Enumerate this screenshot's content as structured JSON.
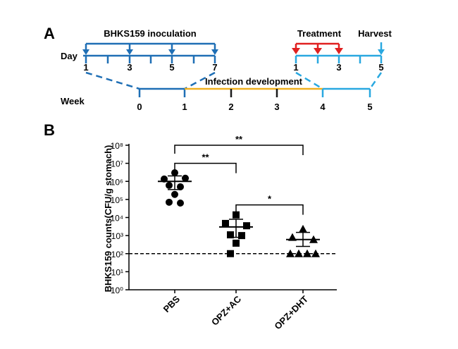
{
  "panel_a": {
    "label": "A",
    "inoculation": "BHKS159 inoculation",
    "day_label": "Day",
    "day_ticks": [
      "1",
      "3",
      "5",
      "7"
    ],
    "treatment": "Treatment",
    "harvest": "Harvest",
    "treatment_ticks": [
      "1",
      "3",
      "5"
    ],
    "week_label": "Week",
    "week_ticks": [
      "0",
      "1",
      "2",
      "3",
      "4",
      "5"
    ],
    "infection": "Infection development"
  },
  "chart_data": {
    "type": "scatter",
    "panel_label": "B",
    "y_label": "BHKS159 counts(CFU/g stomach)",
    "categories": [
      "PBS",
      "OPZ+AC",
      "OPZ+DHT"
    ],
    "log_y": true,
    "ylim": [
      1,
      100000000
    ],
    "yticks": [
      {
        "value": 1,
        "label": "10⁰"
      },
      {
        "value": 10,
        "label": "10¹"
      },
      {
        "value": 100,
        "label": "10²"
      },
      {
        "value": 1000,
        "label": "10³"
      },
      {
        "value": 10000,
        "label": "10⁴"
      },
      {
        "value": 100000,
        "label": "10⁵"
      },
      {
        "value": 1000000,
        "label": "10⁶"
      },
      {
        "value": 10000000,
        "label": "10⁷"
      },
      {
        "value": 100000000,
        "label": "10⁸"
      }
    ],
    "color": "#000000",
    "groups": [
      {
        "marker": "circle",
        "values": [
          3000000,
          1350000,
          1500000,
          600000,
          500000,
          190000,
          70000,
          63000
        ],
        "mean": 1000000,
        "upper": 2000000,
        "lower": 350000
      },
      {
        "marker": "square",
        "values": [
          14000,
          4700,
          3500,
          1100,
          1000,
          380,
          100
        ],
        "mean": 3000,
        "upper": 8000,
        "lower": 800
      },
      {
        "marker": "triangle",
        "values": [
          2300,
          800,
          600,
          100,
          100,
          100,
          100
        ],
        "mean": 600,
        "upper": 1500,
        "lower": 250
      }
    ],
    "threshold": 100,
    "significance": [
      {
        "from": 0,
        "to": 1,
        "y": 10000000,
        "label": "**"
      },
      {
        "from": 0,
        "to": 2,
        "y": 100000000,
        "label": "**"
      },
      {
        "from": 1,
        "to": 2,
        "y": 50000,
        "label": "*"
      }
    ]
  }
}
